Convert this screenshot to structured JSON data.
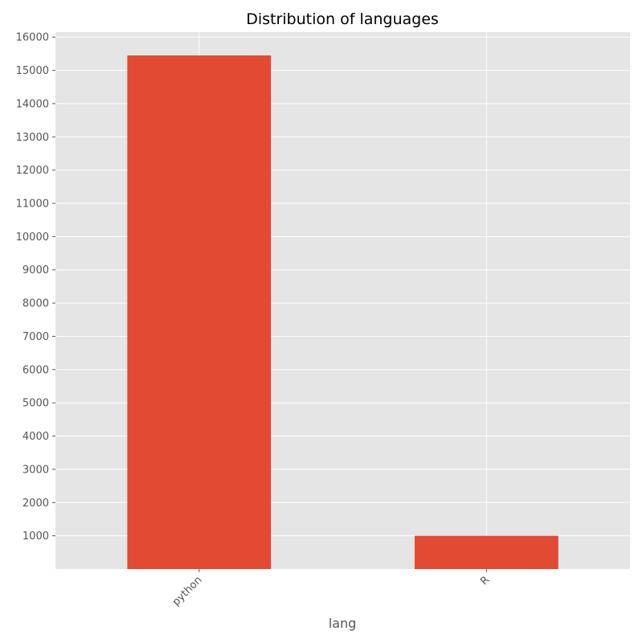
{
  "chart_data": {
    "type": "bar",
    "title": "Distribution of languages",
    "xlabel": "lang",
    "ylabel": "",
    "categories": [
      "python",
      "R"
    ],
    "values": [
      15450,
      1000
    ],
    "ylim": [
      0,
      16150
    ],
    "yticks": [
      1000,
      2000,
      3000,
      4000,
      5000,
      6000,
      7000,
      8000,
      9000,
      10000,
      11000,
      12000,
      13000,
      14000,
      15000,
      16000
    ],
    "grid": true,
    "legend": "none",
    "colors": {
      "bar": "#E24A33",
      "plot_background": "#E5E5E5",
      "grid": "#FFFFFF"
    }
  }
}
